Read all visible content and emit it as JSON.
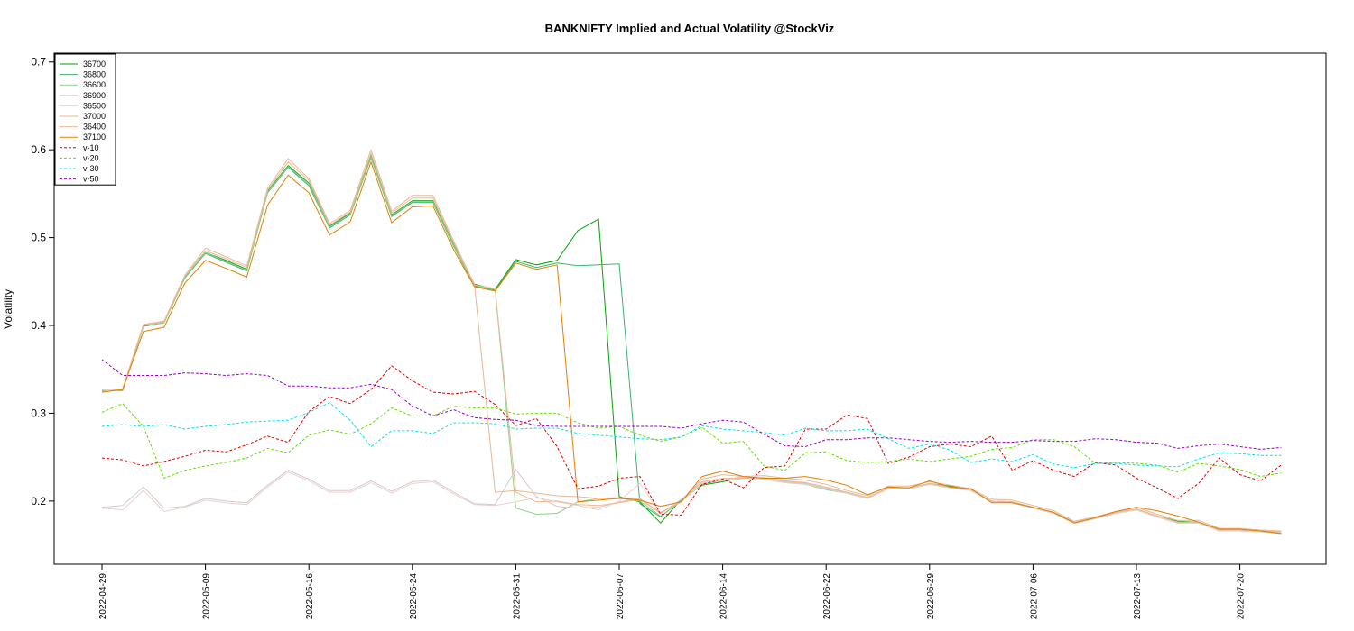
{
  "chart_data": {
    "type": "line",
    "title": "BANKNIFTY Implied and Actual Volatility @StockViz",
    "ylabel": "Volatility",
    "xlabel": "",
    "ylim": [
      0.128,
      0.71
    ],
    "yticks": [
      0.2,
      0.3,
      0.4,
      0.5,
      0.6,
      0.7
    ],
    "ytick_labels": [
      "0.2",
      "0.3",
      "0.4",
      "0.5",
      "0.6",
      "0.7"
    ],
    "xtick_labels": [
      "2022-04-29",
      "2022-05-09",
      "2022-05-16",
      "2022-05-24",
      "2022-05-31",
      "2022-06-07",
      "2022-06-14",
      "2022-06-22",
      "2022-06-29",
      "2022-07-06",
      "2022-07-13",
      "2022-07-20"
    ],
    "xtick_index": [
      0,
      5,
      10,
      15,
      20,
      25,
      30,
      35,
      40,
      45,
      50,
      55
    ],
    "n_points": 58,
    "legend_position": "top-left",
    "grid": false,
    "series": [
      {
        "name": "36700",
        "color": "#00a600",
        "style": "solid",
        "values": [
          0.325,
          0.327,
          0.4,
          0.404,
          0.456,
          0.483,
          0.474,
          0.464,
          0.553,
          0.582,
          0.562,
          0.513,
          0.528,
          0.593,
          0.526,
          0.542,
          0.542,
          0.492,
          0.447,
          0.441,
          0.475,
          0.469,
          0.474,
          0.508,
          0.521,
          0.205,
          0.199,
          0.175,
          0.202,
          0.218,
          0.222,
          0.227,
          0.226,
          0.222,
          0.22,
          0.214,
          0.21,
          0.204,
          0.215,
          0.215,
          0.22,
          0.217,
          0.213,
          0.2,
          0.199,
          0.193,
          0.187,
          0.176,
          0.181,
          0.187,
          0.191,
          0.183,
          0.177,
          0.176,
          0.167,
          0.167,
          0.166,
          0.164
        ]
      },
      {
        "name": "36800",
        "color": "#3cb371",
        "style": "solid",
        "values": [
          0.326,
          0.326,
          0.399,
          0.403,
          0.454,
          0.482,
          0.472,
          0.462,
          0.551,
          0.58,
          0.559,
          0.511,
          0.526,
          0.591,
          0.524,
          0.54,
          0.54,
          0.49,
          0.445,
          0.44,
          0.473,
          0.466,
          0.471,
          0.468,
          0.469,
          0.47,
          0.197,
          0.182,
          0.201,
          0.219,
          0.224,
          0.226,
          0.226,
          0.222,
          0.219,
          0.214,
          0.209,
          0.203,
          0.214,
          0.214,
          0.219,
          0.215,
          0.213,
          0.199,
          0.198,
          0.192,
          0.186,
          0.175,
          0.18,
          0.186,
          0.19,
          0.182,
          0.175,
          0.176,
          0.166,
          0.166,
          0.165,
          0.164
        ]
      },
      {
        "name": "36600",
        "color": "#8fd18f",
        "style": "solid",
        "values": [
          0.325,
          0.327,
          0.4,
          0.403,
          0.455,
          0.483,
          0.473,
          0.463,
          0.552,
          0.581,
          0.561,
          0.512,
          0.527,
          0.592,
          0.525,
          0.541,
          0.541,
          0.491,
          0.446,
          0.441,
          0.192,
          0.185,
          0.186,
          0.199,
          0.203,
          0.203,
          0.2,
          0.183,
          0.2,
          0.219,
          0.223,
          0.226,
          0.225,
          0.221,
          0.219,
          0.213,
          0.209,
          0.203,
          0.214,
          0.214,
          0.219,
          0.215,
          0.212,
          0.199,
          0.198,
          0.192,
          0.186,
          0.175,
          0.18,
          0.186,
          0.19,
          0.182,
          0.175,
          0.175,
          0.166,
          0.166,
          0.165,
          0.163
        ]
      },
      {
        "name": "36900",
        "color": "#dcc8c8",
        "style": "solid",
        "values": [
          0.193,
          0.195,
          0.216,
          0.192,
          0.194,
          0.203,
          0.2,
          0.198,
          0.218,
          0.235,
          0.225,
          0.212,
          0.212,
          0.223,
          0.211,
          0.222,
          0.224,
          0.21,
          0.197,
          0.196,
          0.236,
          0.205,
          0.194,
          0.192,
          0.193,
          0.199,
          0.203,
          0.186,
          0.202,
          0.221,
          0.224,
          0.228,
          0.226,
          0.222,
          0.22,
          0.215,
          0.21,
          0.204,
          0.215,
          0.215,
          0.22,
          0.216,
          0.213,
          0.2,
          0.199,
          0.193,
          0.187,
          0.176,
          0.181,
          0.187,
          0.191,
          0.183,
          0.176,
          0.176,
          0.167,
          0.167,
          0.166,
          0.165
        ]
      },
      {
        "name": "36500",
        "color": "#e6d2d2",
        "style": "solid",
        "values": [
          0.192,
          0.19,
          0.212,
          0.188,
          0.193,
          0.201,
          0.198,
          0.196,
          0.216,
          0.233,
          0.223,
          0.21,
          0.21,
          0.221,
          0.209,
          0.22,
          0.222,
          0.208,
          0.196,
          0.195,
          0.199,
          0.204,
          0.199,
          0.195,
          0.19,
          0.2,
          0.22,
          0.186,
          0.2,
          0.22,
          0.223,
          0.227,
          0.225,
          0.221,
          0.219,
          0.214,
          0.209,
          0.203,
          0.214,
          0.214,
          0.219,
          0.215,
          0.212,
          0.199,
          0.198,
          0.192,
          0.186,
          0.175,
          0.18,
          0.186,
          0.19,
          0.182,
          0.175,
          0.175,
          0.166,
          0.166,
          0.165,
          0.164
        ]
      },
      {
        "name": "37000",
        "color": "#e8b896",
        "style": "solid",
        "values": [
          0.325,
          0.328,
          0.401,
          0.405,
          0.457,
          0.488,
          0.478,
          0.468,
          0.556,
          0.59,
          0.567,
          0.516,
          0.531,
          0.6,
          0.53,
          0.548,
          0.548,
          0.496,
          0.447,
          0.21,
          0.212,
          0.209,
          0.206,
          0.205,
          0.203,
          0.204,
          0.202,
          0.187,
          0.199,
          0.225,
          0.23,
          0.228,
          0.229,
          0.226,
          0.224,
          0.219,
          0.212,
          0.206,
          0.217,
          0.217,
          0.222,
          0.218,
          0.214,
          0.202,
          0.201,
          0.195,
          0.189,
          0.177,
          0.182,
          0.188,
          0.193,
          0.185,
          0.178,
          0.178,
          0.169,
          0.169,
          0.167,
          0.166
        ]
      },
      {
        "name": "36400",
        "color": "#f0b896",
        "style": "solid",
        "values": [
          0.325,
          0.327,
          0.4,
          0.404,
          0.456,
          0.485,
          0.476,
          0.466,
          0.554,
          0.586,
          0.565,
          0.514,
          0.529,
          0.596,
          0.528,
          0.545,
          0.545,
          0.494,
          0.446,
          0.442,
          0.21,
          0.199,
          0.2,
          0.196,
          0.195,
          0.198,
          0.202,
          0.186,
          0.2,
          0.222,
          0.226,
          0.226,
          0.227,
          0.223,
          0.221,
          0.216,
          0.21,
          0.204,
          0.215,
          0.215,
          0.22,
          0.216,
          0.213,
          0.2,
          0.199,
          0.193,
          0.187,
          0.176,
          0.181,
          0.187,
          0.191,
          0.183,
          0.176,
          0.176,
          0.167,
          0.167,
          0.166,
          0.165
        ]
      },
      {
        "name": "37100",
        "color": "#e08000",
        "style": "solid",
        "values": [
          0.324,
          0.327,
          0.393,
          0.398,
          0.448,
          0.474,
          0.465,
          0.455,
          0.537,
          0.571,
          0.551,
          0.503,
          0.518,
          0.586,
          0.517,
          0.535,
          0.536,
          0.486,
          0.444,
          0.439,
          0.471,
          0.464,
          0.469,
          0.199,
          0.201,
          0.203,
          0.201,
          0.194,
          0.199,
          0.228,
          0.234,
          0.228,
          0.226,
          0.226,
          0.228,
          0.224,
          0.218,
          0.207,
          0.216,
          0.215,
          0.223,
          0.216,
          0.214,
          0.198,
          0.198,
          0.193,
          0.187,
          0.175,
          0.181,
          0.188,
          0.193,
          0.189,
          0.183,
          0.176,
          0.168,
          0.168,
          0.166,
          0.163
        ]
      },
      {
        "name": "v-10",
        "color": "#dd0000",
        "style": "dashed",
        "values": [
          0.249,
          0.247,
          0.24,
          0.245,
          0.251,
          0.258,
          0.256,
          0.264,
          0.274,
          0.267,
          0.302,
          0.319,
          0.311,
          0.327,
          0.354,
          0.337,
          0.324,
          0.322,
          0.325,
          0.31,
          0.286,
          0.294,
          0.262,
          0.214,
          0.217,
          0.226,
          0.228,
          0.185,
          0.184,
          0.219,
          0.225,
          0.215,
          0.238,
          0.24,
          0.282,
          0.282,
          0.298,
          0.294,
          0.243,
          0.25,
          0.262,
          0.265,
          0.262,
          0.274,
          0.235,
          0.246,
          0.235,
          0.228,
          0.244,
          0.241,
          0.226,
          0.215,
          0.203,
          0.22,
          0.249,
          0.23,
          0.223,
          0.241
        ]
      },
      {
        "name": "v-20",
        "color": "#66dd00",
        "style": "dashed",
        "values": [
          0.301,
          0.311,
          0.285,
          0.226,
          0.235,
          0.24,
          0.244,
          0.249,
          0.26,
          0.255,
          0.275,
          0.281,
          0.276,
          0.288,
          0.306,
          0.297,
          0.297,
          0.308,
          0.306,
          0.306,
          0.299,
          0.3,
          0.3,
          0.289,
          0.283,
          0.285,
          0.275,
          0.268,
          0.273,
          0.284,
          0.266,
          0.268,
          0.24,
          0.235,
          0.255,
          0.256,
          0.246,
          0.244,
          0.245,
          0.248,
          0.245,
          0.248,
          0.251,
          0.259,
          0.261,
          0.27,
          0.27,
          0.262,
          0.243,
          0.244,
          0.243,
          0.241,
          0.233,
          0.243,
          0.24,
          0.236,
          0.228,
          0.232
        ]
      },
      {
        "name": "v-30",
        "color": "#00e5ee",
        "style": "dashed",
        "values": [
          0.285,
          0.287,
          0.285,
          0.287,
          0.282,
          0.285,
          0.287,
          0.29,
          0.291,
          0.292,
          0.301,
          0.312,
          0.292,
          0.262,
          0.28,
          0.28,
          0.277,
          0.289,
          0.289,
          0.288,
          0.282,
          0.283,
          0.283,
          0.277,
          0.275,
          0.273,
          0.271,
          0.27,
          0.273,
          0.286,
          0.282,
          0.28,
          0.278,
          0.275,
          0.283,
          0.28,
          0.28,
          0.282,
          0.271,
          0.26,
          0.265,
          0.258,
          0.244,
          0.248,
          0.245,
          0.253,
          0.242,
          0.238,
          0.243,
          0.243,
          0.241,
          0.24,
          0.239,
          0.248,
          0.255,
          0.254,
          0.252,
          0.252
        ]
      },
      {
        "name": "v-50",
        "color": "#9900cc",
        "style": "dashed",
        "values": [
          0.361,
          0.343,
          0.343,
          0.343,
          0.346,
          0.345,
          0.343,
          0.345,
          0.343,
          0.331,
          0.331,
          0.329,
          0.329,
          0.333,
          0.327,
          0.308,
          0.297,
          0.304,
          0.295,
          0.293,
          0.292,
          0.286,
          0.285,
          0.285,
          0.285,
          0.285,
          0.285,
          0.285,
          0.283,
          0.288,
          0.292,
          0.29,
          0.276,
          0.263,
          0.262,
          0.27,
          0.27,
          0.272,
          0.272,
          0.27,
          0.268,
          0.267,
          0.268,
          0.267,
          0.267,
          0.269,
          0.268,
          0.268,
          0.271,
          0.27,
          0.267,
          0.266,
          0.26,
          0.263,
          0.265,
          0.262,
          0.259,
          0.261
        ]
      }
    ]
  }
}
